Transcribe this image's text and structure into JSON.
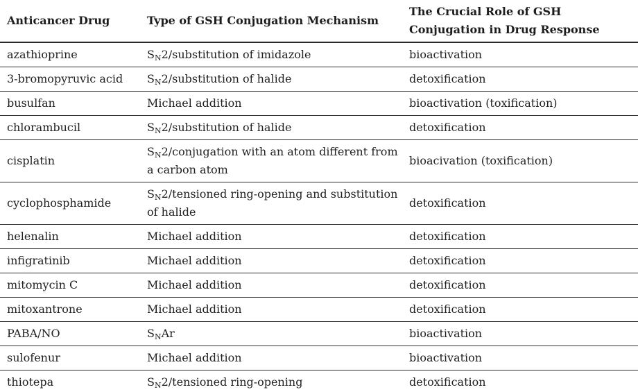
{
  "table": {
    "header": {
      "col1": "Anticancer Drug",
      "col2": "Type of GSH Conjugation Mechanism",
      "col3": "The Crucial Role of GSH Conjugation in Drug Response"
    },
    "rows": [
      {
        "drug": "azathioprine",
        "mech_pre": "S",
        "mech_sub": "N",
        "mech_rest": "2/substitution of imidazole",
        "role": "bioactivation"
      },
      {
        "drug": "3-bromopyruvic acid",
        "mech_pre": "S",
        "mech_sub": "N",
        "mech_rest": "2/substitution of halide",
        "role": "detoxification"
      },
      {
        "drug": "busulfan",
        "mech_pre": "",
        "mech_sub": "",
        "mech_rest": "Michael addition",
        "role": "bioactivation (toxification)"
      },
      {
        "drug": "chlorambucil",
        "mech_pre": "S",
        "mech_sub": "N",
        "mech_rest": "2/substitution of halide",
        "role": "detoxification"
      },
      {
        "drug": "cisplatin",
        "mech_pre": "S",
        "mech_sub": "N",
        "mech_rest": "2/conjugation with an atom different from a carbon atom",
        "role": "bioacivation (toxification)"
      },
      {
        "drug": "cyclophosphamide",
        "mech_pre": "S",
        "mech_sub": "N",
        "mech_rest": "2/tensioned ring-opening and substitution of halide",
        "role": "detoxification"
      },
      {
        "drug": "helenalin",
        "mech_pre": "",
        "mech_sub": "",
        "mech_rest": "Michael addition",
        "role": "detoxification"
      },
      {
        "drug": "infigratinib",
        "mech_pre": "",
        "mech_sub": "",
        "mech_rest": "Michael addition",
        "role": "detoxification"
      },
      {
        "drug": "mitomycin C",
        "mech_pre": "",
        "mech_sub": "",
        "mech_rest": "Michael addition",
        "role": "detoxification"
      },
      {
        "drug": "mitoxantrone",
        "mech_pre": "",
        "mech_sub": "",
        "mech_rest": "Michael addition",
        "role": "detoxification"
      },
      {
        "drug": "PABA/NO",
        "mech_pre": "S",
        "mech_sub": "N",
        "mech_rest": "Ar",
        "role": "bioactivation"
      },
      {
        "drug": "sulofenur",
        "mech_pre": "",
        "mech_sub": "",
        "mech_rest": "Michael addition",
        "role": "bioactivation"
      },
      {
        "drug": "thiotepa",
        "mech_pre": "S",
        "mech_sub": "N",
        "mech_rest": "2/tensioned ring-opening",
        "role": "detoxification"
      }
    ]
  }
}
